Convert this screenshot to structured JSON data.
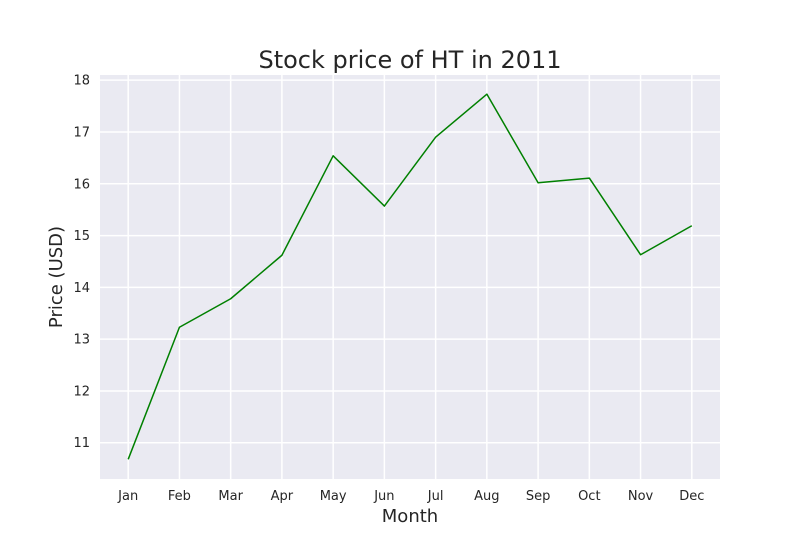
{
  "chart_data": {
    "type": "line",
    "title": "Stock price of HT in 2011",
    "xlabel": "Month",
    "ylabel": "Price (USD)",
    "categories": [
      "Jan",
      "Feb",
      "Mar",
      "Apr",
      "May",
      "Jun",
      "Jul",
      "Aug",
      "Sep",
      "Oct",
      "Nov",
      "Dec"
    ],
    "values": [
      10.68,
      13.23,
      13.78,
      14.62,
      16.54,
      15.57,
      16.9,
      17.73,
      16.02,
      16.11,
      14.63,
      15.19
    ],
    "yticks": [
      11,
      12,
      13,
      14,
      15,
      16,
      17,
      18
    ],
    "ylim": [
      10.3,
      18.1
    ],
    "grid": true,
    "line_color": "#008000",
    "background_color": "#eaeaf2",
    "grid_color": "#ffffff"
  }
}
